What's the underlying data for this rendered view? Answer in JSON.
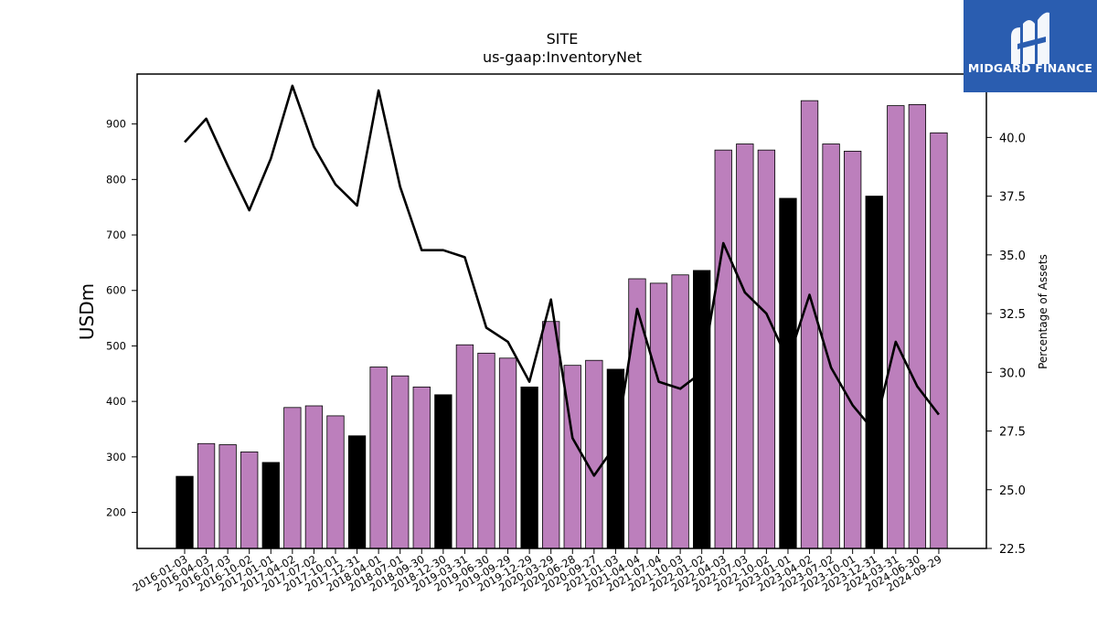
{
  "brand": {
    "name": "MIDGARD FINANCE",
    "bg_color": "#2a5db0"
  },
  "chart_data": {
    "type": "bar",
    "title": "SITE",
    "subtitle": "us-gaap:InventoryNet",
    "ylabel": "USDm",
    "y2label": "Percentage of Assets",
    "ylim": [
      135,
      990
    ],
    "y2lim": [
      22.5,
      42.7
    ],
    "yticks": [
      200,
      300,
      400,
      500,
      600,
      700,
      800,
      900
    ],
    "y2ticks": [
      "22.5",
      "25.0",
      "27.5",
      "30.0",
      "32.5",
      "35.0",
      "37.5",
      "40.0"
    ],
    "categories": [
      "2016-01-03",
      "2016-04-03",
      "2016-07-03",
      "2016-10-02",
      "2017-01-01",
      "2017-04-02",
      "2017-07-02",
      "2017-10-01",
      "2017-12-31",
      "2018-04-01",
      "2018-07-01",
      "2018-09-30",
      "2018-12-30",
      "2019-03-31",
      "2019-06-30",
      "2019-09-29",
      "2019-12-29",
      "2020-03-29",
      "2020-06-28",
      "2020-09-27",
      "2021-01-03",
      "2021-04-04",
      "2021-07-04",
      "2021-10-03",
      "2022-01-02",
      "2022-04-03",
      "2022-07-03",
      "2022-10-02",
      "2023-01-01",
      "2023-04-02",
      "2023-07-02",
      "2023-10-01",
      "2023-12-31",
      "2024-03-31",
      "2024-06-30",
      "2024-09-29"
    ],
    "series": [
      {
        "type": "bar",
        "values": [
          265,
          324,
          322,
          309,
          290,
          389,
          392,
          374,
          338,
          462,
          446,
          426,
          412,
          502,
          487,
          478,
          426,
          544,
          465,
          474,
          458,
          621,
          613,
          628,
          636,
          853,
          864,
          853,
          766,
          942,
          864,
          851,
          770,
          933,
          935,
          884
        ],
        "highlight_every": 4,
        "color": "#bc7fbc",
        "highlight_color": "#000000"
      },
      {
        "type": "line",
        "axis": "right",
        "values": [
          39.8,
          40.8,
          38.8,
          36.9,
          39.1,
          42.2,
          39.6,
          38.0,
          37.1,
          42.0,
          37.9,
          35.2,
          35.2,
          34.9,
          31.9,
          31.3,
          29.6,
          33.1,
          27.2,
          25.6,
          26.9,
          32.7,
          29.6,
          29.3,
          30.0,
          35.5,
          33.4,
          32.5,
          30.5,
          33.3,
          30.2,
          28.6,
          27.5,
          31.3,
          29.4,
          28.2
        ],
        "color": "#000000"
      }
    ]
  }
}
